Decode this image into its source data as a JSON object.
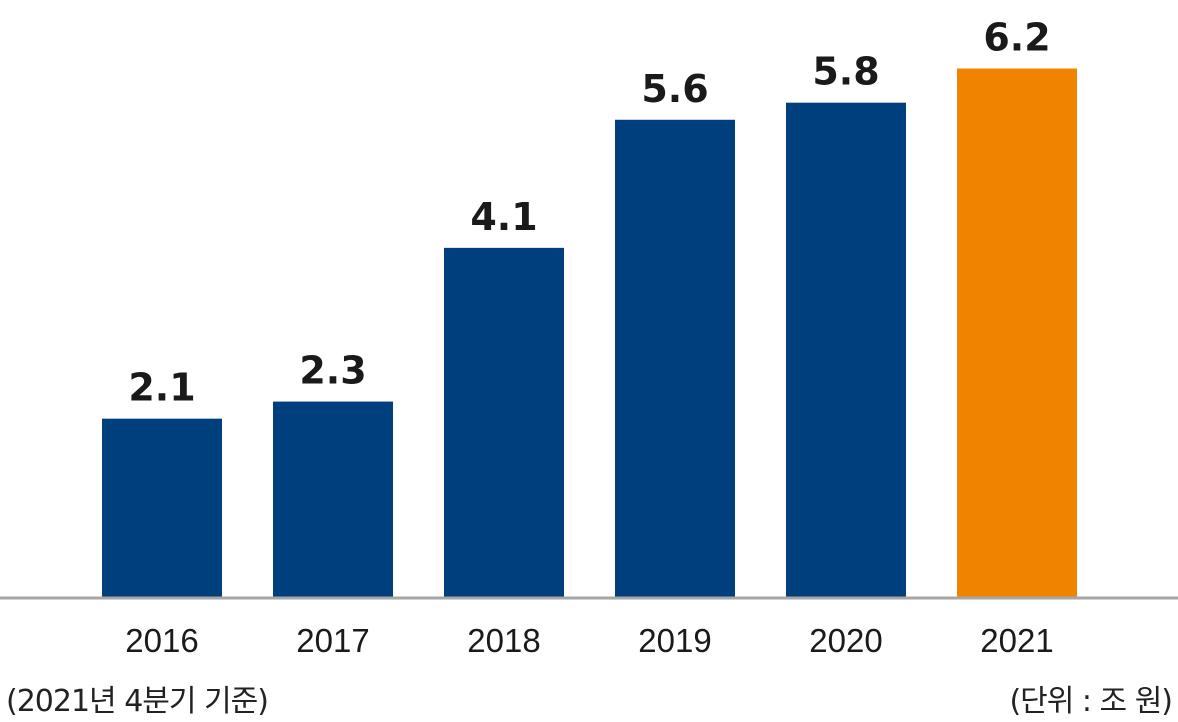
{
  "chart_data": {
    "type": "bar",
    "categories": [
      "2016",
      "2017",
      "2018",
      "2019",
      "2020",
      "2021"
    ],
    "values": [
      2.1,
      2.3,
      4.1,
      5.6,
      5.8,
      6.2
    ],
    "data_labels": [
      "2.1",
      "2.3",
      "4.1",
      "5.6",
      "5.8",
      "6.2"
    ],
    "title": "",
    "xlabel": "",
    "ylabel": "",
    "ylim": [
      0,
      6.5
    ],
    "grid": false,
    "legend": "none",
    "colors": {
      "bar": "#003F7D",
      "highlight": "#F08300",
      "axis": "#A6A6A6",
      "text": "#1A1A1A"
    },
    "highlight_index": 5
  },
  "notes": {
    "basis": "(2021년 4분기 기준)",
    "unit": "(단위 : 조 원)"
  }
}
